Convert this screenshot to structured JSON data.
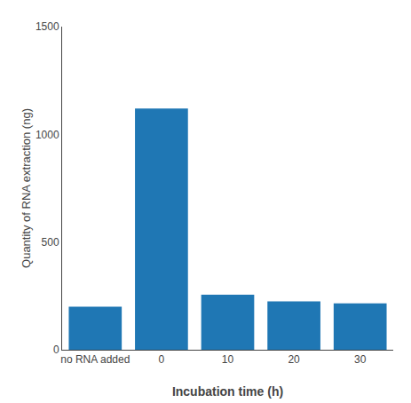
{
  "chart_data": {
    "type": "bar",
    "categories": [
      "no RNA added",
      "0",
      "10",
      "20",
      "30"
    ],
    "values": [
      200,
      1120,
      255,
      225,
      215
    ],
    "xlabel": "Incubation time (h)",
    "ylabel": "Quantity of RNA extraction (ng)",
    "ylim": [
      0,
      1500
    ],
    "yticks": [
      0,
      500,
      1000,
      1500
    ],
    "grid": false
  }
}
